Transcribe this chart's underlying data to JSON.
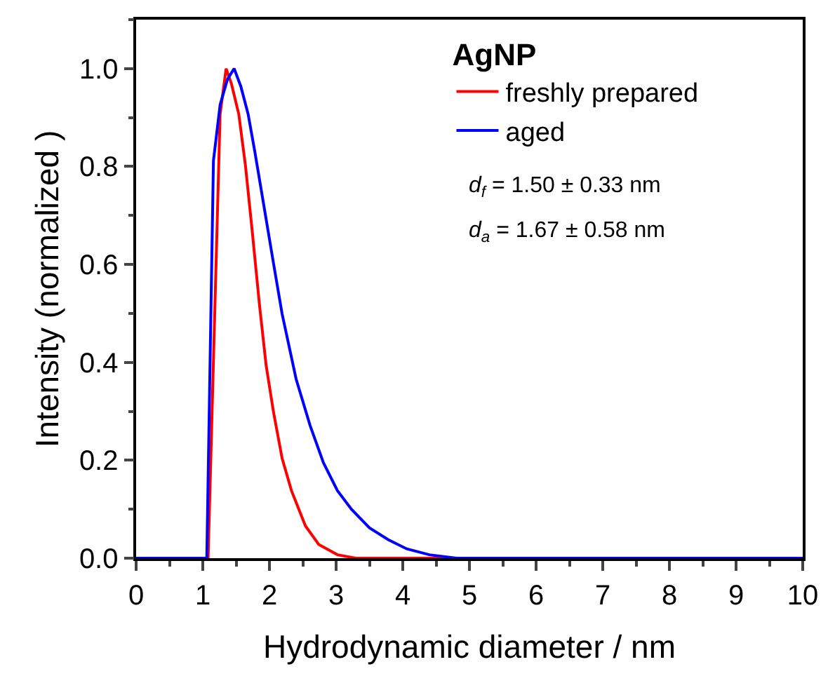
{
  "chart_data": {
    "type": "line",
    "xlabel": "Hydrodynamic diameter / nm",
    "ylabel": "Intensity (normalized )",
    "legend_title": "AgNP",
    "legend": "top right",
    "grid": false,
    "marker": "none",
    "line_style": "solid",
    "xlim": [
      0,
      10
    ],
    "xticks": [
      0,
      1,
      2,
      3,
      4,
      5,
      6,
      7,
      8,
      9,
      10
    ],
    "ylim": [
      0,
      1.1
    ],
    "yticks": [
      {
        "value": 0,
        "label": "0.0"
      },
      {
        "value": 0.2,
        "label": "0.2"
      },
      {
        "value": 0.4,
        "label": "0.4"
      },
      {
        "value": 0.6,
        "label": "0.6"
      },
      {
        "value": 0.8,
        "label": "0.8"
      },
      {
        "value": 1,
        "label": "1.0"
      }
    ],
    "annotations": [
      "d$_{f}$ = 1.50 ± 0.33 nm",
      "d$_{a}$ = 1.67 ± 0.58 nm"
    ],
    "series": [
      {
        "name": "freshly prepared",
        "color": "#ff0000",
        "x": [
          0,
          1.08,
          1.26,
          1.35,
          1.43,
          1.54,
          1.64,
          1.74,
          1.85,
          1.95,
          2.06,
          2.19,
          2.33,
          2.54,
          2.74,
          3.02,
          3.3,
          10
        ],
        "values": [
          0,
          0,
          0.907,
          1.0,
          0.969,
          0.907,
          0.802,
          0.67,
          0.518,
          0.394,
          0.299,
          0.204,
          0.138,
          0.066,
          0.028,
          0.007,
          0,
          0
        ]
      },
      {
        "name": "aged",
        "color": "#0000ff",
        "x": [
          0,
          1.06,
          1.16,
          1.26,
          1.37,
          1.47,
          1.57,
          1.68,
          1.78,
          1.92,
          2.06,
          2.19,
          2.4,
          2.61,
          2.81,
          3.02,
          3.23,
          3.5,
          3.78,
          4.06,
          4.4,
          4.81,
          10
        ],
        "values": [
          0,
          0,
          0.812,
          0.926,
          0.978,
          1.0,
          0.964,
          0.907,
          0.831,
          0.717,
          0.603,
          0.499,
          0.366,
          0.271,
          0.195,
          0.138,
          0.1,
          0.062,
          0.038,
          0.019,
          0.007,
          0,
          0
        ]
      }
    ]
  }
}
